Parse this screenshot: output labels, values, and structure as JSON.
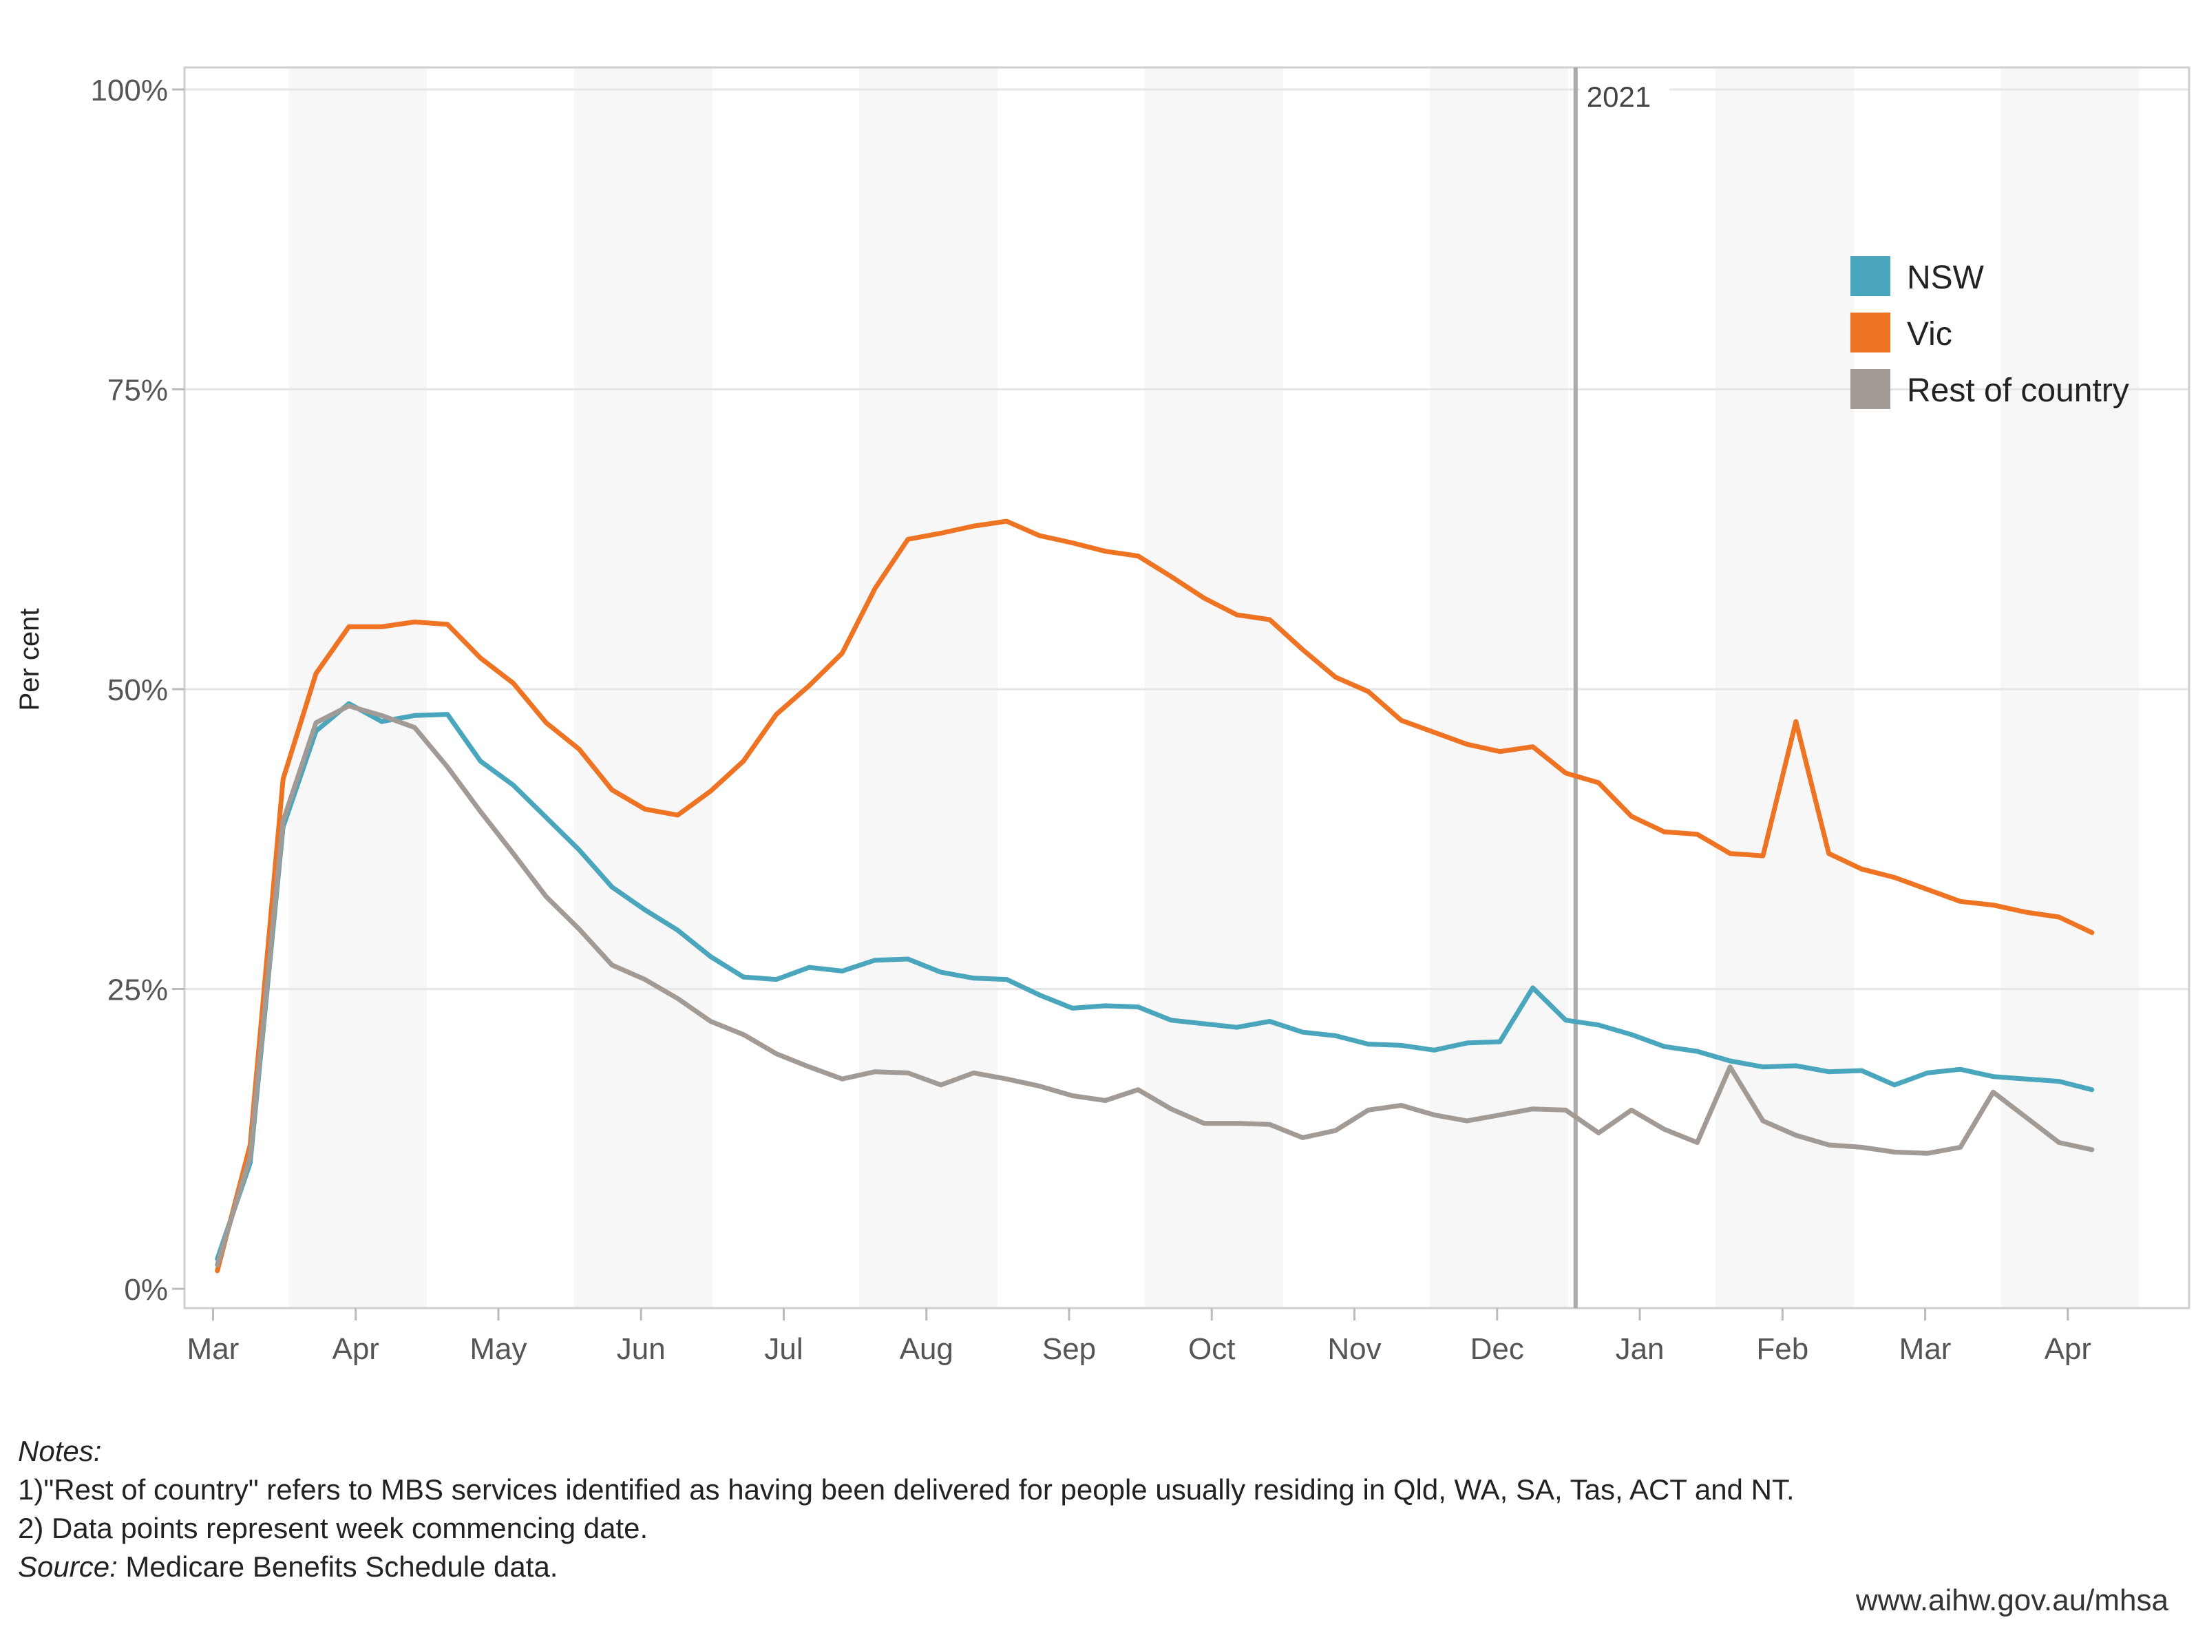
{
  "chart_data": {
    "type": "line",
    "ylabel": "Per cent",
    "ylim": [
      0,
      100
    ],
    "yticks": [
      0,
      25,
      50,
      75,
      100
    ],
    "ytick_labels": [
      "0%",
      "25%",
      "50%",
      "75%",
      "100%"
    ],
    "x_range": [
      -0.2,
      13.85
    ],
    "x_ticks": [
      {
        "label": "Mar",
        "pos": 0
      },
      {
        "label": "Apr",
        "pos": 1
      },
      {
        "label": "May",
        "pos": 2
      },
      {
        "label": "Jun",
        "pos": 3
      },
      {
        "label": "Jul",
        "pos": 4
      },
      {
        "label": "Aug",
        "pos": 5
      },
      {
        "label": "Sep",
        "pos": 6
      },
      {
        "label": "Oct",
        "pos": 7
      },
      {
        "label": "Nov",
        "pos": 8
      },
      {
        "label": "Dec",
        "pos": 9
      },
      {
        "label": "Jan",
        "pos": 10
      },
      {
        "label": "Feb",
        "pos": 11
      },
      {
        "label": "Mar",
        "pos": 12
      },
      {
        "label": "Apr",
        "pos": 13
      }
    ],
    "year_marker": {
      "label": "2021",
      "pos": 9.55
    },
    "legend_position": "top-right",
    "x_start": 0.03,
    "x_step": 0.2305,
    "series": [
      {
        "name": "NSW",
        "color": "#4aa6bd",
        "values": [
          2.5,
          10.5,
          38.5,
          46.5,
          48.8,
          47.3,
          47.8,
          47.9,
          44.0,
          42.0,
          39.3,
          36.6,
          33.5,
          31.6,
          29.9,
          27.7,
          26.0,
          25.8,
          26.8,
          26.5,
          27.4,
          27.5,
          26.4,
          25.9,
          25.8,
          24.5,
          23.4,
          23.6,
          23.5,
          22.4,
          22.1,
          21.8,
          22.3,
          21.4,
          21.1,
          20.4,
          20.3,
          19.9,
          20.5,
          20.6,
          25.1,
          22.4,
          22.0,
          21.2,
          20.2,
          19.8,
          19.0,
          18.5,
          18.6,
          18.1,
          18.2,
          17.0,
          18.0,
          18.3,
          17.7,
          17.5,
          17.3,
          16.6
        ]
      },
      {
        "name": "Vic",
        "color": "#ee7424",
        "values": [
          1.5,
          12.0,
          42.5,
          51.3,
          55.2,
          55.2,
          55.6,
          55.4,
          52.6,
          50.5,
          47.2,
          45.0,
          41.6,
          40.0,
          39.5,
          41.5,
          44.0,
          47.9,
          50.3,
          53.0,
          58.4,
          62.5,
          63.0,
          63.6,
          64.0,
          62.8,
          62.2,
          61.5,
          61.1,
          59.4,
          57.6,
          56.2,
          55.8,
          53.3,
          51.0,
          49.8,
          47.4,
          46.4,
          45.4,
          44.8,
          45.2,
          43.0,
          42.2,
          39.4,
          38.1,
          37.9,
          36.3,
          36.1,
          47.3,
          36.3,
          35.0,
          34.3,
          33.3,
          32.3,
          32.0,
          31.4,
          31.0,
          29.7
        ]
      },
      {
        "name": "Rest of country",
        "color": "#a19a95",
        "values": [
          2.0,
          11.0,
          39.0,
          47.2,
          48.6,
          47.8,
          46.8,
          43.5,
          39.8,
          36.3,
          32.7,
          30.0,
          27.0,
          25.8,
          24.2,
          22.3,
          21.2,
          19.6,
          18.5,
          17.5,
          18.1,
          18.0,
          17.0,
          18.0,
          17.5,
          16.9,
          16.1,
          15.7,
          16.6,
          15.0,
          13.8,
          13.8,
          13.7,
          12.6,
          13.2,
          14.9,
          15.3,
          14.5,
          14.0,
          14.5,
          15.0,
          14.9,
          13.0,
          14.9,
          13.3,
          12.2,
          18.5,
          14.0,
          12.8,
          12.0,
          11.8,
          11.4,
          11.3,
          11.8,
          16.4,
          14.3,
          12.2,
          11.6
        ]
      }
    ]
  },
  "notes": {
    "heading": "Notes:",
    "line1": "1)\"Rest of country\" refers to MBS services identified as having been delivered for people usually residing in Qld, WA, SA, Tas, ACT and NT.",
    "line2": "2) Data points represent week commencing date.",
    "source_label": "Source:",
    "source_text": " Medicare Benefits Schedule data."
  },
  "footer_url": "www.aihw.gov.au/mhsa"
}
